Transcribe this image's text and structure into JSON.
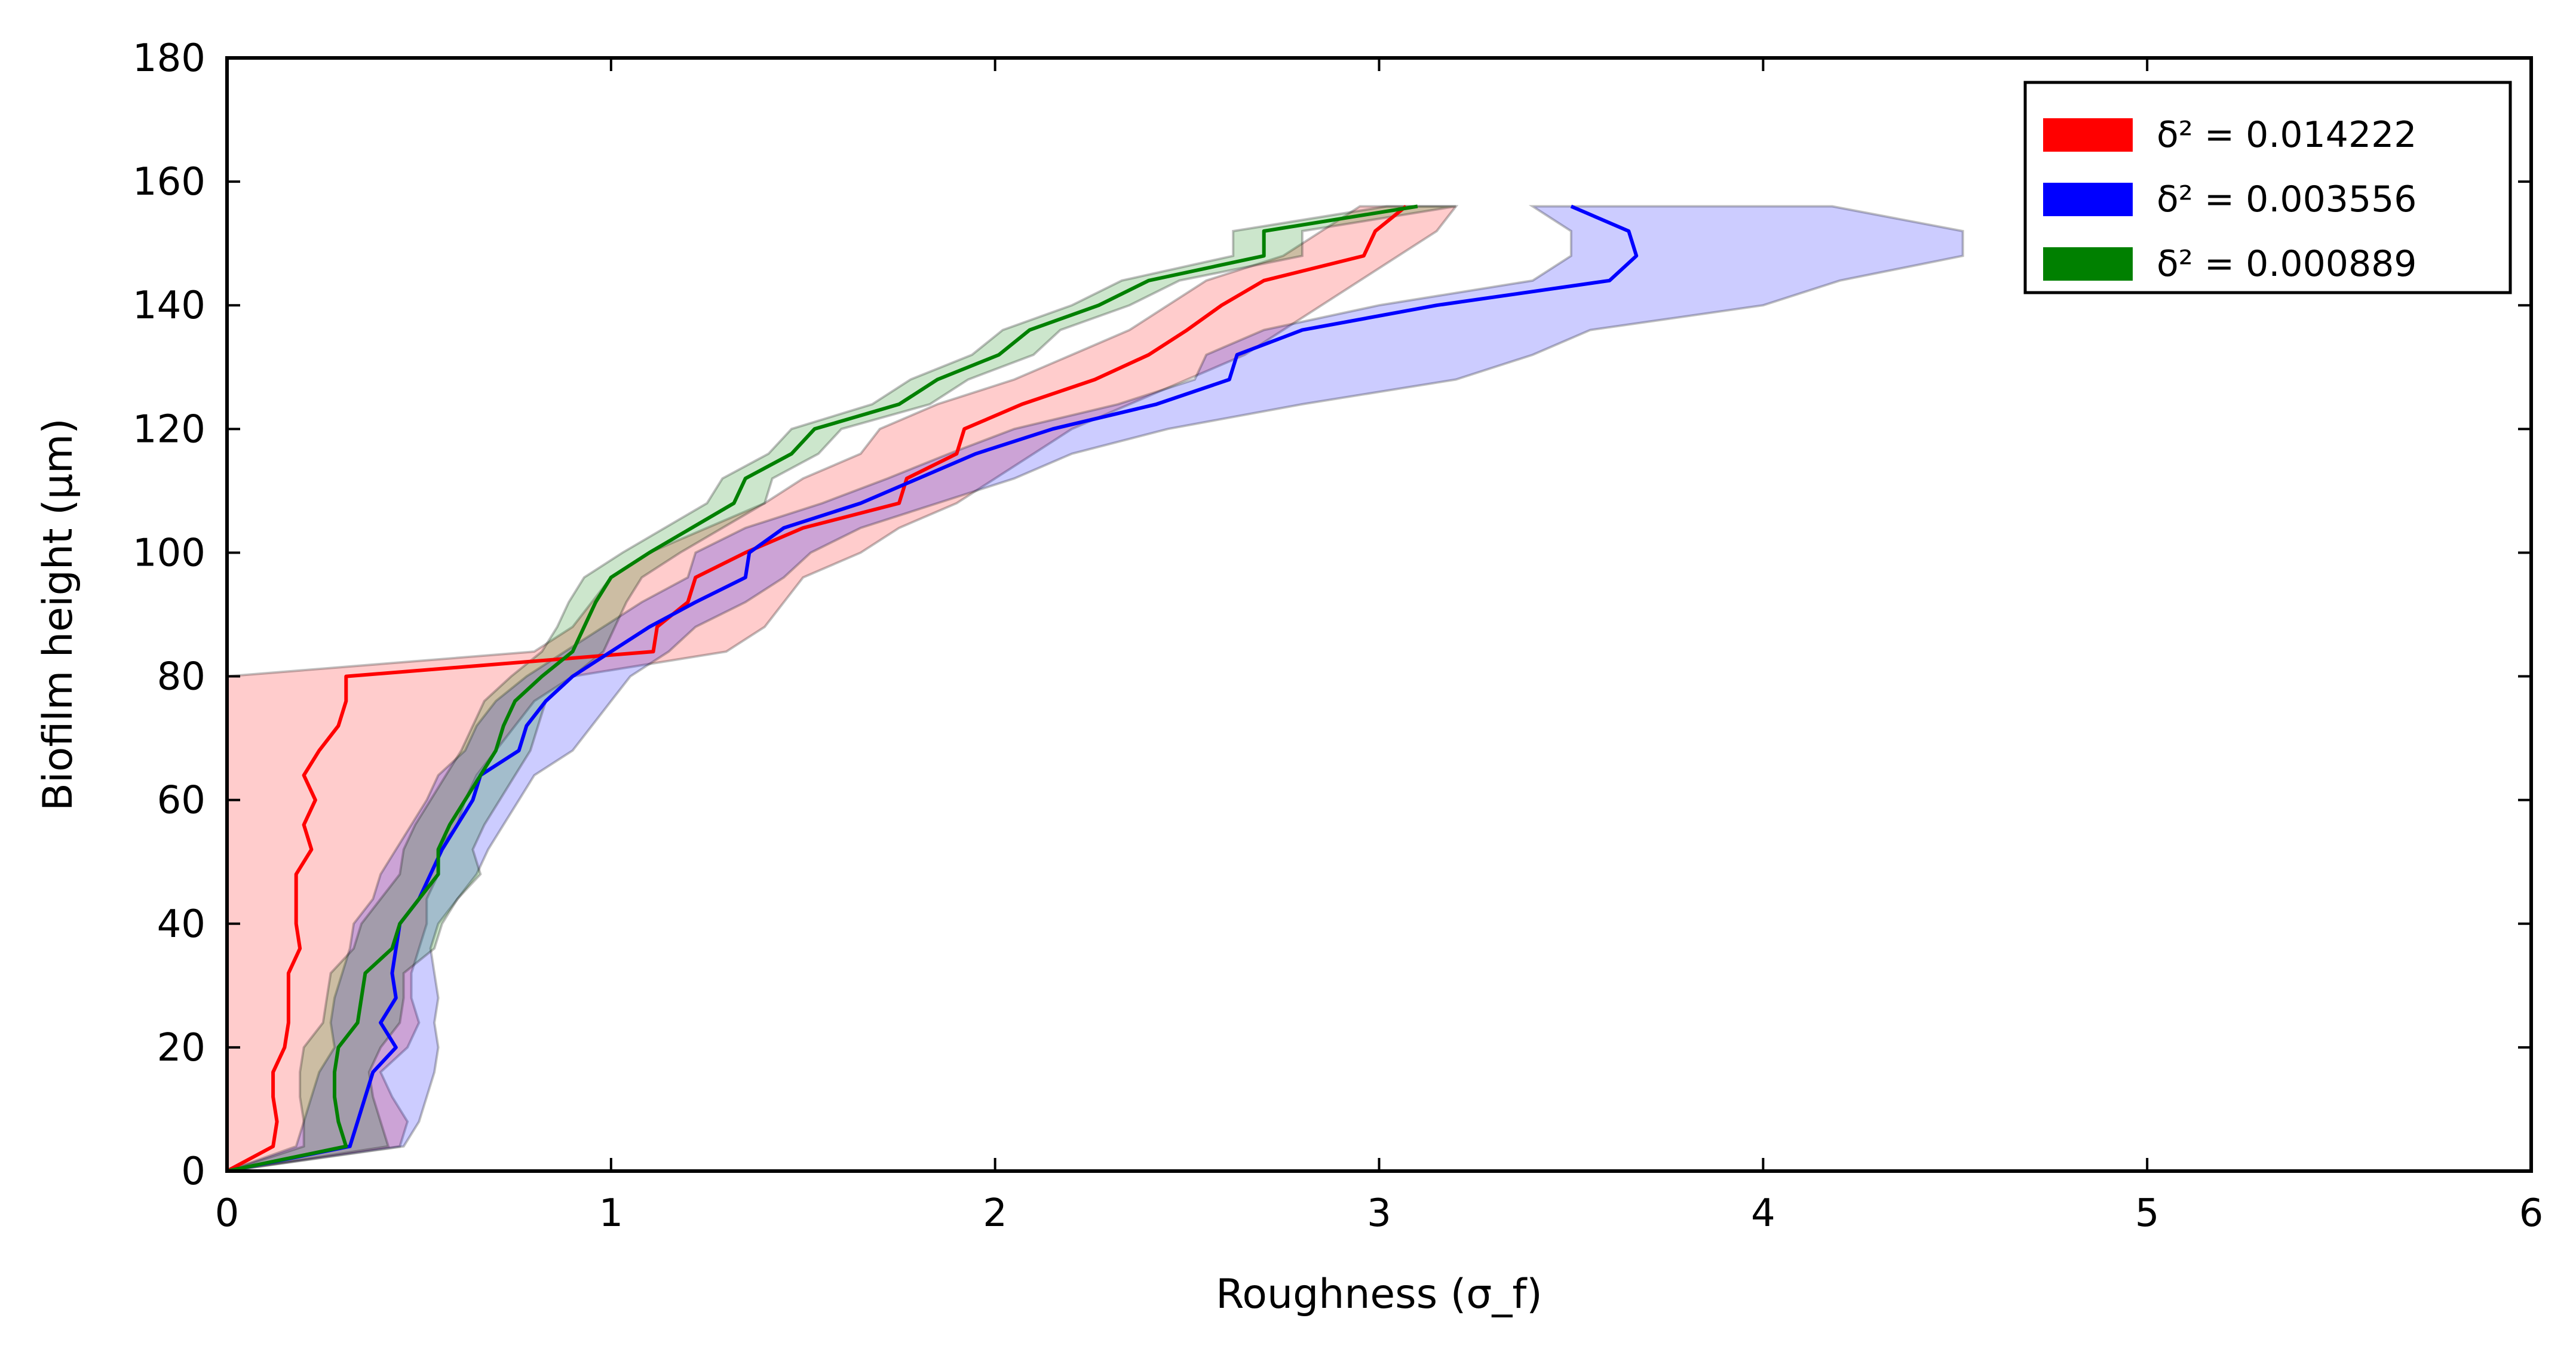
{
  "chart_data": {
    "type": "line",
    "xlabel": "Roughness (σ_f)",
    "ylabel": "Biofilm height (μm)",
    "xlim": [
      0,
      6
    ],
    "ylim": [
      0,
      180
    ],
    "xticks": [
      "0",
      "1",
      "2",
      "3",
      "4",
      "5",
      "6"
    ],
    "yticks": [
      "0",
      "20",
      "40",
      "60",
      "80",
      "100",
      "120",
      "140",
      "160",
      "180"
    ],
    "grid": false,
    "legend_position": "top-right",
    "series": [
      {
        "name": "δ² = 0.014222",
        "color": "#ff0000",
        "fill_opacity": 0.2,
        "y": [
          0,
          4,
          8,
          12,
          16,
          20,
          24,
          28,
          32,
          36,
          40,
          44,
          48,
          52,
          56,
          60,
          64,
          68,
          72,
          76,
          80,
          84,
          88,
          92,
          96,
          100,
          104,
          108,
          112,
          116,
          120,
          124,
          128,
          132,
          136,
          140,
          144,
          148,
          152,
          156
        ],
        "mean": [
          0,
          0.12,
          0.13,
          0.12,
          0.12,
          0.15,
          0.16,
          0.16,
          0.16,
          0.19,
          0.18,
          0.18,
          0.18,
          0.22,
          0.2,
          0.23,
          0.2,
          0.24,
          0.29,
          0.31,
          0.31,
          1.11,
          1.12,
          1.2,
          1.22,
          1.35,
          1.5,
          1.75,
          1.77,
          1.9,
          1.92,
          2.07,
          2.26,
          2.4,
          2.5,
          2.59,
          2.7,
          2.96,
          2.99,
          3.07
        ],
        "lower": [
          0,
          0,
          0,
          0,
          0,
          0,
          0,
          0,
          0,
          0,
          0,
          0,
          0,
          0,
          0,
          0,
          0,
          0,
          0,
          0,
          0,
          0.8,
          0.9,
          0.95,
          1.0,
          1.1,
          1.25,
          1.4,
          1.5,
          1.65,
          1.7,
          1.85,
          2.05,
          2.2,
          2.35,
          2.45,
          2.55,
          2.75,
          2.85,
          2.95
        ],
        "upper": [
          0,
          0.45,
          0.47,
          0.43,
          0.4,
          0.47,
          0.5,
          0.48,
          0.48,
          0.5,
          0.52,
          0.52,
          0.55,
          0.55,
          0.6,
          0.62,
          0.65,
          0.7,
          0.75,
          0.8,
          0.9,
          1.3,
          1.4,
          1.45,
          1.5,
          1.65,
          1.75,
          1.9,
          2.0,
          2.1,
          2.2,
          2.35,
          2.5,
          2.65,
          2.75,
          2.85,
          2.95,
          3.05,
          3.15,
          3.2
        ]
      },
      {
        "name": "δ² = 0.003556",
        "color": "#0000ff",
        "fill_opacity": 0.2,
        "y": [
          0,
          4,
          8,
          12,
          16,
          20,
          24,
          28,
          32,
          36,
          40,
          44,
          48,
          52,
          56,
          60,
          64,
          68,
          72,
          76,
          80,
          84,
          88,
          92,
          96,
          100,
          104,
          108,
          112,
          116,
          120,
          124,
          128,
          132,
          136,
          140,
          144,
          148,
          152,
          156
        ],
        "mean": [
          0,
          0.32,
          0.34,
          0.36,
          0.38,
          0.44,
          0.4,
          0.44,
          0.43,
          0.44,
          0.45,
          0.5,
          0.53,
          0.56,
          0.6,
          0.64,
          0.66,
          0.76,
          0.78,
          0.83,
          0.9,
          1.0,
          1.1,
          1.22,
          1.35,
          1.36,
          1.45,
          1.65,
          1.8,
          1.95,
          2.15,
          2.42,
          2.61,
          2.63,
          2.8,
          3.15,
          3.6,
          3.67,
          3.65,
          3.5
        ],
        "lower": [
          0,
          0.18,
          0.2,
          0.22,
          0.24,
          0.28,
          0.27,
          0.28,
          0.3,
          0.32,
          0.33,
          0.38,
          0.4,
          0.44,
          0.48,
          0.52,
          0.55,
          0.62,
          0.65,
          0.7,
          0.78,
          0.88,
          0.98,
          1.08,
          1.2,
          1.22,
          1.35,
          1.55,
          1.72,
          1.88,
          2.05,
          2.32,
          2.52,
          2.55,
          2.7,
          3.0,
          3.4,
          3.5,
          3.5,
          3.4
        ],
        "upper": [
          0,
          0.46,
          0.5,
          0.52,
          0.54,
          0.55,
          0.54,
          0.55,
          0.54,
          0.53,
          0.55,
          0.6,
          0.65,
          0.68,
          0.72,
          0.76,
          0.8,
          0.9,
          0.95,
          1.0,
          1.05,
          1.15,
          1.22,
          1.35,
          1.45,
          1.52,
          1.65,
          1.85,
          2.05,
          2.2,
          2.45,
          2.8,
          3.2,
          3.4,
          3.55,
          4.0,
          4.2,
          4.52,
          4.52,
          4.18
        ]
      },
      {
        "name": "δ² = 0.000889",
        "color": "#008000",
        "fill_opacity": 0.2,
        "y": [
          0,
          4,
          8,
          12,
          16,
          20,
          24,
          28,
          32,
          36,
          40,
          44,
          48,
          52,
          56,
          60,
          64,
          68,
          72,
          76,
          80,
          84,
          88,
          92,
          96,
          100,
          104,
          108,
          112,
          116,
          120,
          124,
          128,
          132,
          136,
          140,
          144,
          148,
          152,
          156
        ],
        "mean": [
          0,
          0.31,
          0.29,
          0.28,
          0.28,
          0.29,
          0.34,
          0.35,
          0.36,
          0.43,
          0.45,
          0.5,
          0.55,
          0.55,
          0.58,
          0.62,
          0.66,
          0.7,
          0.72,
          0.75,
          0.82,
          0.9,
          0.93,
          0.96,
          1.0,
          1.1,
          1.21,
          1.32,
          1.35,
          1.47,
          1.53,
          1.75,
          1.85,
          2.01,
          2.09,
          2.27,
          2.4,
          2.7,
          2.7,
          3.1
        ],
        "lower": [
          0,
          0.2,
          0.2,
          0.19,
          0.19,
          0.2,
          0.25,
          0.26,
          0.27,
          0.33,
          0.35,
          0.4,
          0.45,
          0.46,
          0.49,
          0.53,
          0.57,
          0.61,
          0.64,
          0.67,
          0.74,
          0.82,
          0.86,
          0.89,
          0.93,
          1.03,
          1.14,
          1.25,
          1.29,
          1.41,
          1.47,
          1.68,
          1.78,
          1.94,
          2.02,
          2.2,
          2.33,
          2.62,
          2.62,
          3.02
        ],
        "upper": [
          0,
          0.42,
          0.4,
          0.38,
          0.37,
          0.4,
          0.45,
          0.46,
          0.46,
          0.54,
          0.56,
          0.6,
          0.66,
          0.64,
          0.67,
          0.71,
          0.75,
          0.79,
          0.81,
          0.83,
          0.9,
          0.98,
          1.01,
          1.04,
          1.08,
          1.18,
          1.29,
          1.4,
          1.42,
          1.54,
          1.6,
          1.83,
          1.93,
          2.1,
          2.17,
          2.35,
          2.48,
          2.8,
          2.8,
          3.2
        ]
      }
    ]
  }
}
